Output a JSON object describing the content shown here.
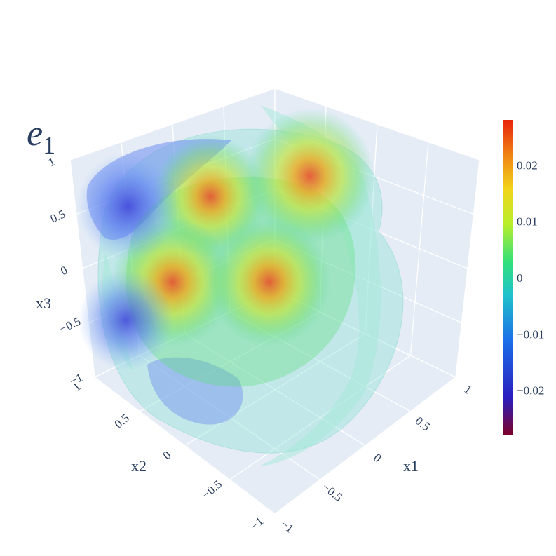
{
  "chart_data": {
    "type": "isosurface-3d",
    "title": "e",
    "title_subscript": "1",
    "axes": {
      "x": {
        "label": "x1",
        "range": [
          -1,
          1
        ],
        "ticks": [
          "−1",
          "−0.5",
          "0",
          "0.5",
          "1"
        ]
      },
      "y": {
        "label": "x2",
        "range": [
          -1,
          1
        ],
        "ticks": [
          "−1",
          "−0.5",
          "0",
          "0.5",
          "1"
        ]
      },
      "z": {
        "label": "x3",
        "range": [
          -1,
          1
        ],
        "ticks": [
          "−1",
          "−0.5",
          "0",
          "0.5",
          "1"
        ]
      }
    },
    "grid": true,
    "colorbar": {
      "colorscale": "jet",
      "range": [
        -0.028,
        0.028
      ],
      "tick_values": [
        0.02,
        0.01,
        0,
        -0.01,
        -0.02
      ],
      "tick_labels": [
        "0.02",
        "0.01",
        "0",
        "−0.01",
        "−0.02"
      ],
      "colors": [
        "#7f0029",
        "#2a1dbf",
        "#1a6fe8",
        "#1fc4c9",
        "#33e07a",
        "#b8ee2a",
        "#f2d41a",
        "#f08a14",
        "#e8230c"
      ]
    },
    "blobs": [
      {
        "sign": "positive",
        "peak": 0.022,
        "x": -0.2,
        "y": 0.3,
        "z": 0.6
      },
      {
        "sign": "positive",
        "peak": 0.026,
        "x": 0.5,
        "y": -0.1,
        "z": 0.6
      },
      {
        "sign": "positive",
        "peak": 0.024,
        "x": -0.6,
        "y": 0.4,
        "z": 0.0
      },
      {
        "sign": "positive",
        "peak": 0.024,
        "x": 0.3,
        "y": 0.3,
        "z": -0.5
      },
      {
        "sign": "negative",
        "peak": -0.018,
        "x": -0.8,
        "y": 0.6,
        "z": 0.7
      },
      {
        "sign": "negative",
        "peak": -0.016,
        "x": -0.7,
        "y": 0.9,
        "z": -0.6
      }
    ]
  }
}
